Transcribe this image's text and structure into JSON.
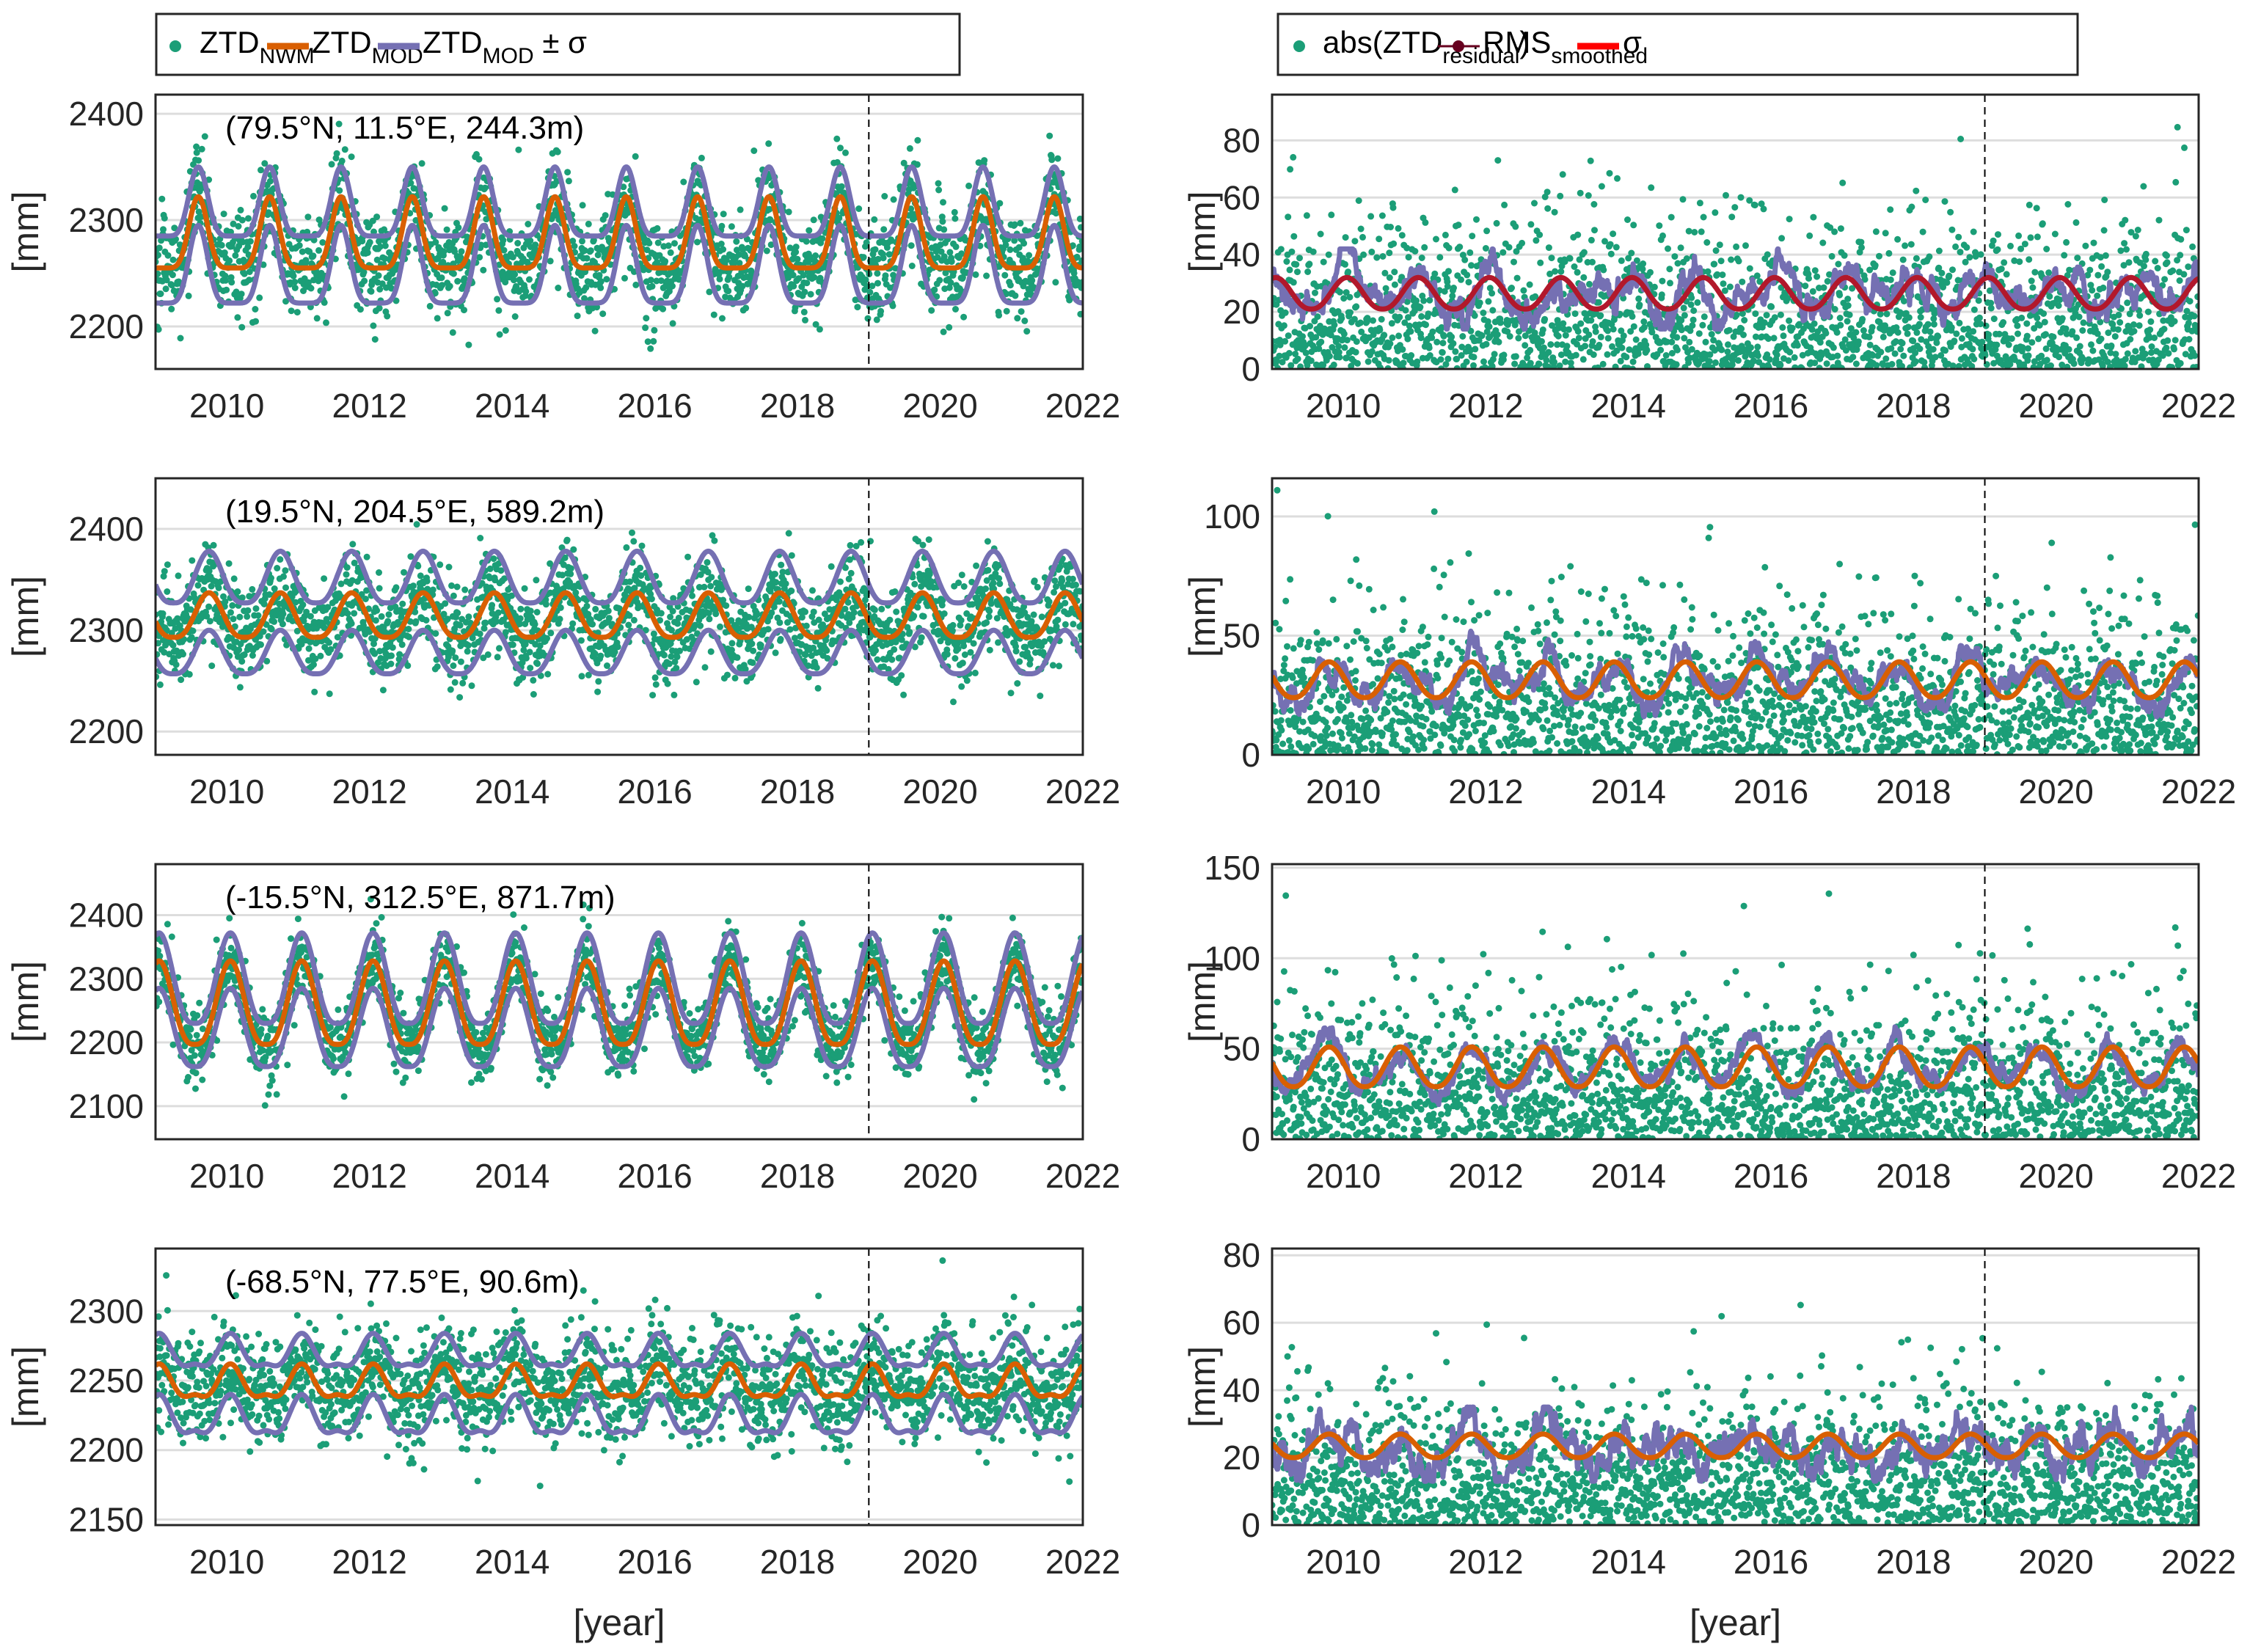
{
  "figure": {
    "legends": {
      "left": {
        "entries": [
          {
            "label": "ZTD",
            "sub": "NWM",
            "suffix": "",
            "kind": "dot",
            "color": "#1b9e77"
          },
          {
            "label": "ZTD",
            "sub": "MOD",
            "suffix": "",
            "kind": "line",
            "color": "#d95f02"
          },
          {
            "label": "ZTD",
            "sub": "MOD",
            "suffix": " ± σ",
            "kind": "line",
            "color": "#7570b3"
          }
        ]
      },
      "right": {
        "entries": [
          {
            "label": "abs(ZTD",
            "sub": "residual",
            "suffix": ")",
            "kind": "dot",
            "color": "#1b9e77"
          },
          {
            "label": "RMS",
            "sub": "smoothed",
            "suffix": "",
            "kind": "line-marker",
            "color": "#67001f"
          },
          {
            "label": "σ",
            "sub": "",
            "suffix": "",
            "kind": "line",
            "color": "#ff0000"
          }
        ]
      }
    },
    "colors": {
      "points": "#1b9e77",
      "model": "#d95f02",
      "sigma_band": "#7570b3",
      "rms": "#7570b3",
      "sigma_right": "#b2182b",
      "grid": "#dddddd",
      "frame": "#262626",
      "split_line": "#000000"
    }
  },
  "chart_data": [
    {
      "id": "ztd-79N",
      "type": "scatter",
      "column": "left",
      "row": 0,
      "annotation": "(79.5°N, 11.5°E, 244.3m)",
      "xlabel": "",
      "ylabel": "[mm]",
      "xlim": [
        2009.0,
        2022.0
      ],
      "ylim": [
        2160,
        2418
      ],
      "xticks": [
        2010,
        2012,
        2014,
        2016,
        2018,
        2020,
        2022
      ],
      "yticks": [
        2200,
        2300,
        2400
      ],
      "grid": true,
      "split_year": 2019.0,
      "series": [
        {
          "name": "ZTD_NWM",
          "kind": "scatter",
          "model_mean": 2280,
          "seasonal_amp": 33,
          "peak_phase": 0.6,
          "base_floor": 2255,
          "noise_sd": 28
        },
        {
          "name": "ZTD_MOD",
          "kind": "line",
          "min": 2255,
          "max": 2322,
          "peak_phase": 0.6
        },
        {
          "name": "ZTD_MOD + σ",
          "kind": "line",
          "min": 2285,
          "max": 2350
        },
        {
          "name": "ZTD_MOD - σ",
          "kind": "line",
          "min": 2222,
          "max": 2295
        }
      ]
    },
    {
      "id": "res-79N",
      "type": "scatter",
      "column": "right",
      "row": 0,
      "xlabel": "",
      "ylabel": "[mm]",
      "xlim": [
        2009.0,
        2022.0
      ],
      "ylim": [
        0,
        96
      ],
      "xticks": [
        2010,
        2012,
        2014,
        2016,
        2018,
        2020,
        2022
      ],
      "yticks": [
        0,
        20,
        40,
        60,
        80
      ],
      "grid": true,
      "split_year": 2019.0,
      "series": [
        {
          "name": "abs(ZTD_residual)",
          "kind": "scatter",
          "scale": 24,
          "max": 92
        },
        {
          "name": "RMS_smoothed",
          "kind": "line",
          "min": 14,
          "max": 42
        },
        {
          "name": "σ",
          "kind": "line",
          "min": 21,
          "max": 32
        }
      ]
    },
    {
      "id": "ztd-19N",
      "type": "scatter",
      "column": "left",
      "row": 1,
      "annotation": "(19.5°N, 204.5°E, 589.2m)",
      "xlabel": "",
      "ylabel": "[mm]",
      "xlim": [
        2009.0,
        2022.0
      ],
      "ylim": [
        2177,
        2450
      ],
      "xticks": [
        2010,
        2012,
        2014,
        2016,
        2018,
        2020,
        2022
      ],
      "yticks": [
        2200,
        2300,
        2400
      ],
      "grid": true,
      "split_year": 2019.0,
      "series": [
        {
          "name": "ZTD_NWM",
          "kind": "scatter",
          "noise_sd": 28
        },
        {
          "name": "ZTD_MOD",
          "kind": "line",
          "min": 2293,
          "max": 2337
        },
        {
          "name": "ZTD_MOD + σ",
          "kind": "line",
          "min": 2327,
          "max": 2378
        },
        {
          "name": "ZTD_MOD - σ",
          "kind": "line",
          "min": 2257,
          "max": 2300
        }
      ]
    },
    {
      "id": "res-19N",
      "type": "scatter",
      "column": "right",
      "row": 1,
      "xlabel": "",
      "ylabel": "[mm]",
      "xlim": [
        2009.0,
        2022.0
      ],
      "ylim": [
        0,
        116
      ],
      "xticks": [
        2010,
        2012,
        2014,
        2016,
        2018,
        2020,
        2022
      ],
      "yticks": [
        0,
        50,
        100
      ],
      "grid": true,
      "split_year": 2019.0,
      "series": [
        {
          "name": "abs(ZTD_residual)",
          "kind": "scatter",
          "scale": 28,
          "max": 111
        },
        {
          "name": "RMS_smoothed",
          "kind": "line",
          "min": 16,
          "max": 62
        },
        {
          "name": "σ",
          "kind": "line",
          "min": 24,
          "max": 39
        }
      ]
    },
    {
      "id": "ztd-15S",
      "type": "scatter",
      "column": "left",
      "row": 2,
      "annotation": "(-15.5°N, 312.5°E, 871.7m)",
      "xlabel": "",
      "ylabel": "[mm]",
      "xlim": [
        2009.0,
        2022.0
      ],
      "ylim": [
        2048,
        2480
      ],
      "xticks": [
        2010,
        2012,
        2014,
        2016,
        2018,
        2020,
        2022
      ],
      "yticks": [
        2100,
        2200,
        2300,
        2400
      ],
      "grid": true,
      "split_year": 2019.0,
      "series": [
        {
          "name": "ZTD_NWM",
          "kind": "scatter",
          "noise_sd": 35
        },
        {
          "name": "ZTD_MOD",
          "kind": "line",
          "min": 2197,
          "max": 2328
        },
        {
          "name": "ZTD_MOD + σ",
          "kind": "line",
          "min": 2230,
          "max": 2372
        },
        {
          "name": "ZTD_MOD - σ",
          "kind": "line",
          "min": 2162,
          "max": 2285
        }
      ]
    },
    {
      "id": "res-15S",
      "type": "scatter",
      "column": "right",
      "row": 2,
      "xlabel": "",
      "ylabel": "[mm]",
      "xlim": [
        2009.0,
        2022.0
      ],
      "ylim": [
        0,
        152
      ],
      "xticks": [
        2010,
        2012,
        2014,
        2016,
        2018,
        2020,
        2022
      ],
      "yticks": [
        0,
        50,
        100,
        150
      ],
      "grid": true,
      "split_year": 2019.0,
      "series": [
        {
          "name": "abs(ZTD_residual)",
          "kind": "scatter",
          "scale": 36,
          "max": 137
        },
        {
          "name": "RMS_smoothed",
          "kind": "line",
          "min": 15,
          "max": 63
        },
        {
          "name": "σ",
          "kind": "line",
          "min": 29,
          "max": 51
        }
      ]
    },
    {
      "id": "ztd-68S",
      "type": "scatter",
      "column": "left",
      "row": 3,
      "annotation": "(-68.5°N, 77.5°E, 90.6m)",
      "xlabel": "[year]",
      "ylabel": "[mm]",
      "xlim": [
        2009.0,
        2022.0
      ],
      "ylim": [
        2146,
        2345
      ],
      "xticks": [
        2010,
        2012,
        2014,
        2016,
        2018,
        2020,
        2022
      ],
      "yticks": [
        2150,
        2200,
        2250,
        2300
      ],
      "grid": true,
      "split_year": 2019.0,
      "series": [
        {
          "name": "ZTD_NWM",
          "kind": "scatter",
          "noise_sd": 22
        },
        {
          "name": "ZTD_MOD",
          "kind": "line",
          "min": 2228,
          "max": 2262
        },
        {
          "name": "ZTD_MOD + σ",
          "kind": "line",
          "min": 2250,
          "max": 2284
        },
        {
          "name": "ZTD_MOD - σ",
          "kind": "line",
          "min": 2200,
          "max": 2240
        }
      ]
    },
    {
      "id": "res-68S",
      "type": "scatter",
      "column": "right",
      "row": 3,
      "xlabel": "[year]",
      "ylabel": "[mm]",
      "xlim": [
        2009.0,
        2022.0
      ],
      "ylim": [
        0,
        82
      ],
      "xticks": [
        2010,
        2012,
        2014,
        2016,
        2018,
        2020,
        2022
      ],
      "yticks": [
        0,
        20,
        40,
        60,
        80
      ],
      "grid": true,
      "split_year": 2019.0,
      "series": [
        {
          "name": "abs(ZTD_residual)",
          "kind": "scatter",
          "scale": 18,
          "max": 75
        },
        {
          "name": "RMS_smoothed",
          "kind": "line",
          "min": 13,
          "max": 35
        },
        {
          "name": "σ",
          "kind": "line",
          "min": 20,
          "max": 27
        }
      ]
    }
  ]
}
